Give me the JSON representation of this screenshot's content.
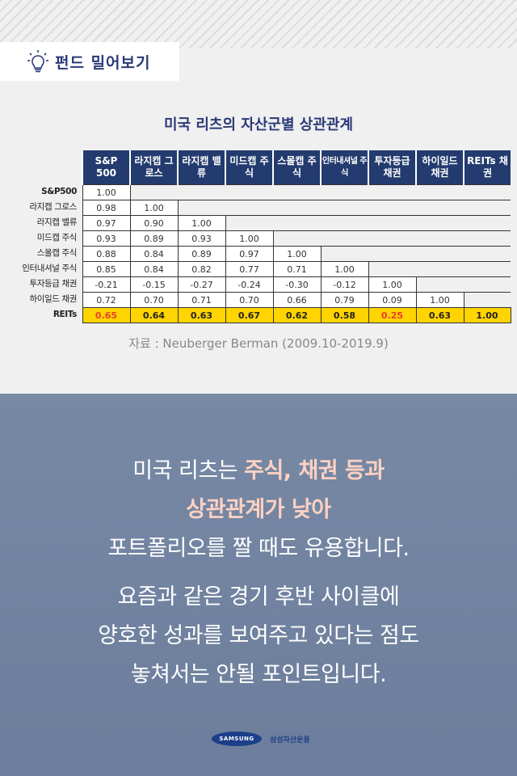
{
  "badge": {
    "label": "펀드 밀어보기",
    "icon": "lightbulb-icon"
  },
  "table": {
    "title": "미국 리츠의 자산군별 상관관계",
    "columns": [
      "S&P 500",
      "라지캡 그로스",
      "라지캡 밸류",
      "미드캡 주식",
      "스몰캡 주식",
      "인터내셔널 주식",
      "투자등급 채권",
      "하이일드 채권",
      "REITs 채권"
    ],
    "row_labels": [
      "S&P500",
      "라지캡 그로스",
      "라지캡 밸류",
      "미드캡 주식",
      "스몰캡 주식",
      "인터내셔널 주식",
      "투자등급 채권",
      "하이일드 채권",
      "REITs"
    ],
    "rows": [
      [
        "1.00"
      ],
      [
        "0.98",
        "1.00"
      ],
      [
        "0.97",
        "0.90",
        "1.00"
      ],
      [
        "0.93",
        "0.89",
        "0.93",
        "1.00"
      ],
      [
        "0.88",
        "0.84",
        "0.89",
        "0.97",
        "1.00"
      ],
      [
        "0.85",
        "0.84",
        "0.82",
        "0.77",
        "0.71",
        "1.00"
      ],
      [
        "-0.21",
        "-0.15",
        "-0.27",
        "-0.24",
        "-0.30",
        "-0.12",
        "1.00"
      ],
      [
        "0.72",
        "0.70",
        "0.71",
        "0.70",
        "0.66",
        "0.79",
        "0.09",
        "1.00"
      ],
      [
        "0.65",
        "0.64",
        "0.63",
        "0.67",
        "0.62",
        "0.58",
        "0.25",
        "0.63",
        "1.00"
      ]
    ],
    "highlight_color": "#ffd400",
    "emphasis_color": "#e8402a",
    "source": "자료 : Neuberger Berman (2009.10-2019.9)"
  },
  "message": {
    "l1_a": "미국 리츠는 ",
    "l1_b": "주식, 채권 등과",
    "l2": "상관관계가 낮아",
    "l3": "포트폴리오를 짤 때도 유용합니다.",
    "l4": "요즘과 같은 경기 후반 사이클에",
    "l5": "양호한 성과를 보여주고 있다는 점도",
    "l6": "놓쳐서는 안될 포인트입니다."
  },
  "footer": {
    "brand": "SAMSUNG",
    "company": "삼성자산운용"
  }
}
